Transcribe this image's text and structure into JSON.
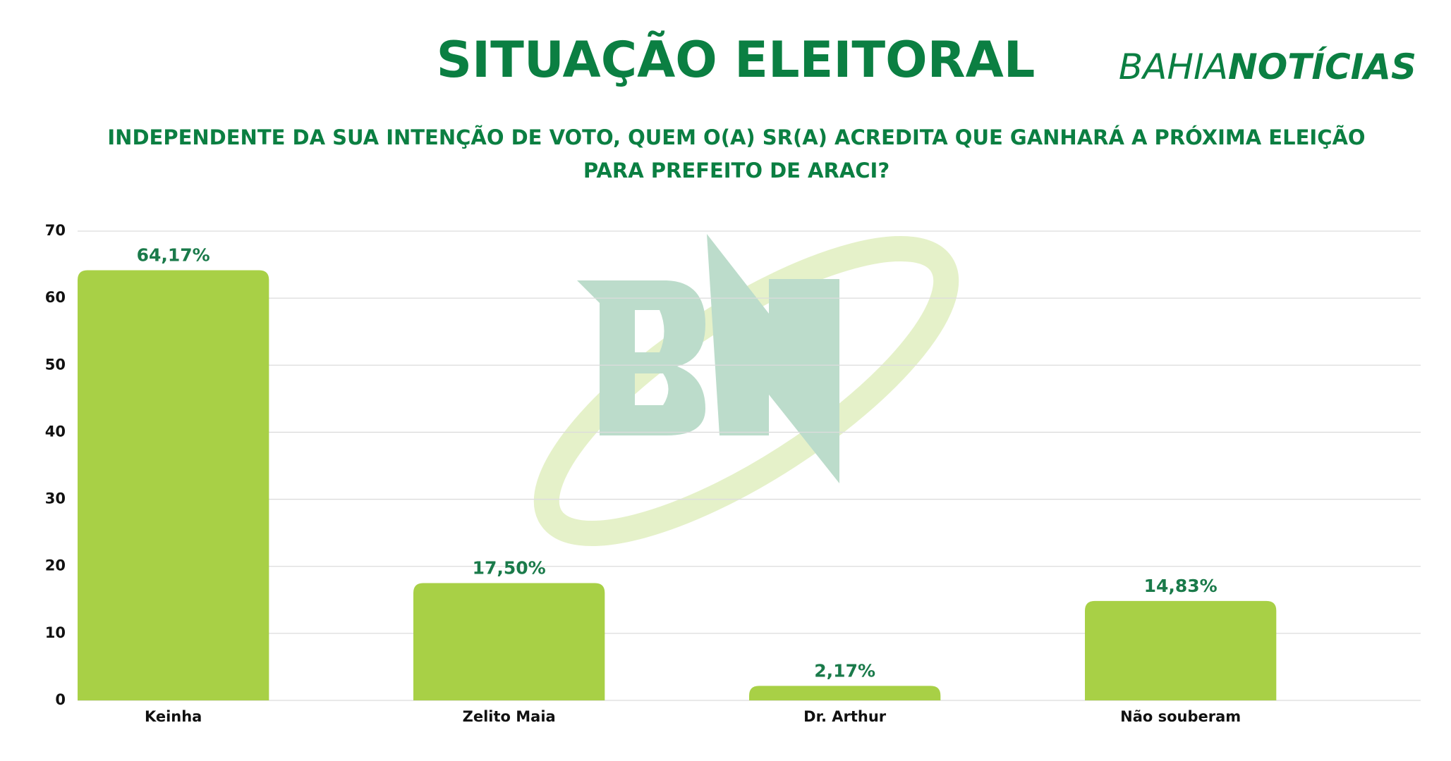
{
  "chart_data": {
    "type": "bar",
    "title": "SITUAÇÃO ELEITORAL",
    "brand": [
      "BAHIA",
      "NOTÍCIAS"
    ],
    "subtitle": [
      "INDEPENDENTE DA SUA INTENÇÃO DE VOTO, QUEM O(A) SR(A) ACREDITA QUE GANHARÁ A PRÓXIMA ELEIÇÃO",
      "PARA PREFEITO DE ARACI?"
    ],
    "categories": [
      "Keinha",
      "Zelito Maia",
      "Dr. Arthur",
      "Não souberam"
    ],
    "values": [
      64.17,
      17.5,
      2.17,
      14.83
    ],
    "value_labels": [
      "64,17%",
      "17,50%",
      "2,17%",
      "14,83%"
    ],
    "color": "#a8d046",
    "ylim": [
      0,
      70
    ],
    "yticks": [
      0,
      10,
      20,
      30,
      40,
      50,
      60,
      70
    ],
    "grid": true
  }
}
